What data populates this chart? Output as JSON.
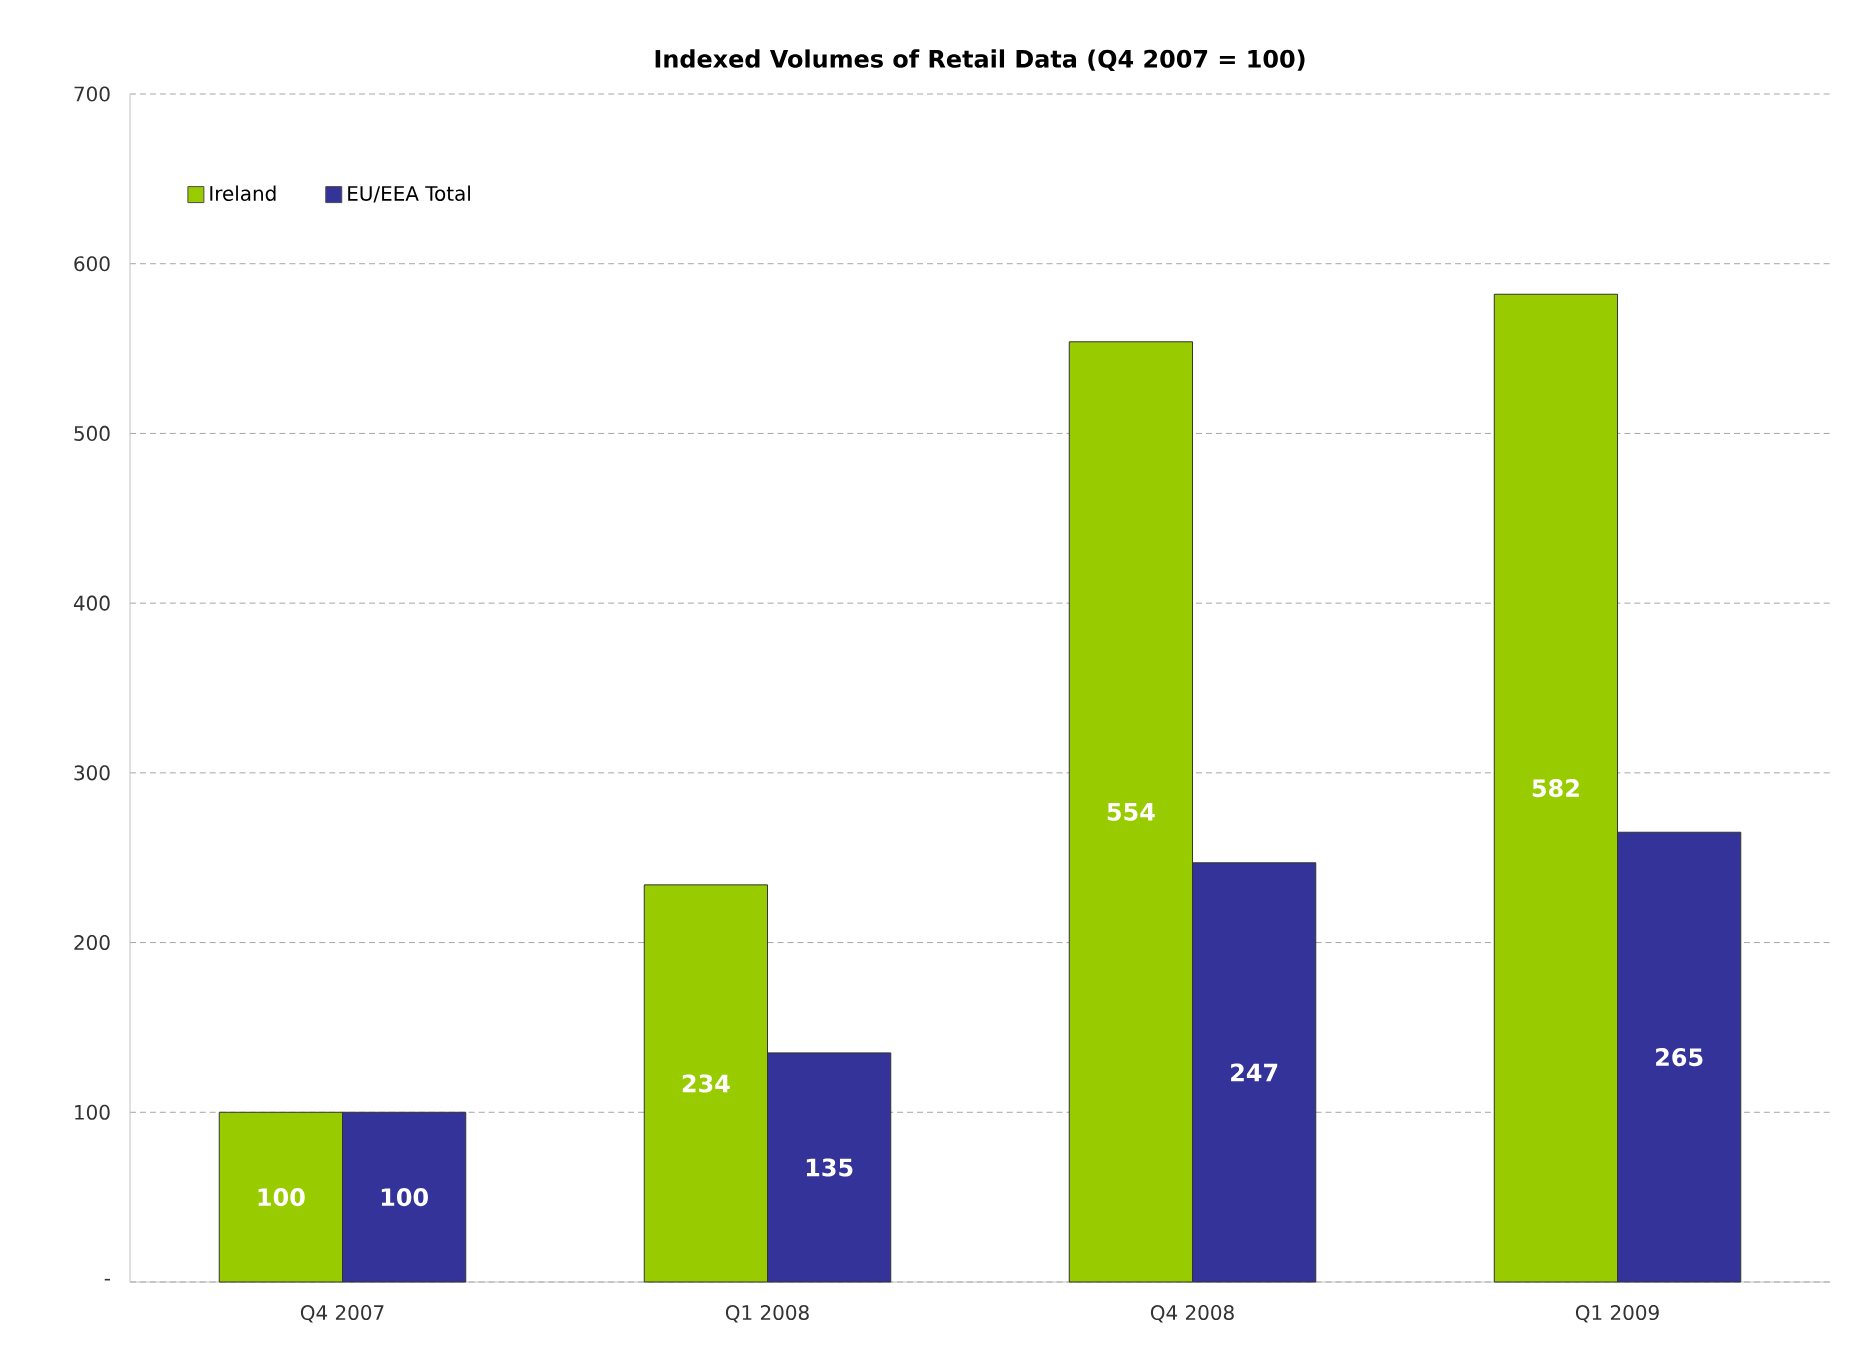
{
  "chart_data": {
    "type": "bar",
    "title": "Indexed Volumes of Retail Data (Q4 2007 = 100)",
    "categories": [
      "Q4 2007",
      "Q1 2008",
      "Q4 2008",
      "Q1 2009"
    ],
    "series": [
      {
        "name": "Ireland",
        "color": "#99cc00",
        "values": [
          100,
          234,
          554,
          582
        ]
      },
      {
        "name": "EU/EEA Total",
        "color": "#333399",
        "values": [
          100,
          135,
          247,
          265
        ]
      }
    ],
    "ylim": [
      0,
      700
    ],
    "yticks": [
      {
        "value": 0,
        "label": "-"
      },
      100,
      200,
      300,
      400,
      500,
      600,
      700
    ],
    "grid": "y",
    "legend": "top left",
    "data_labels": true
  }
}
